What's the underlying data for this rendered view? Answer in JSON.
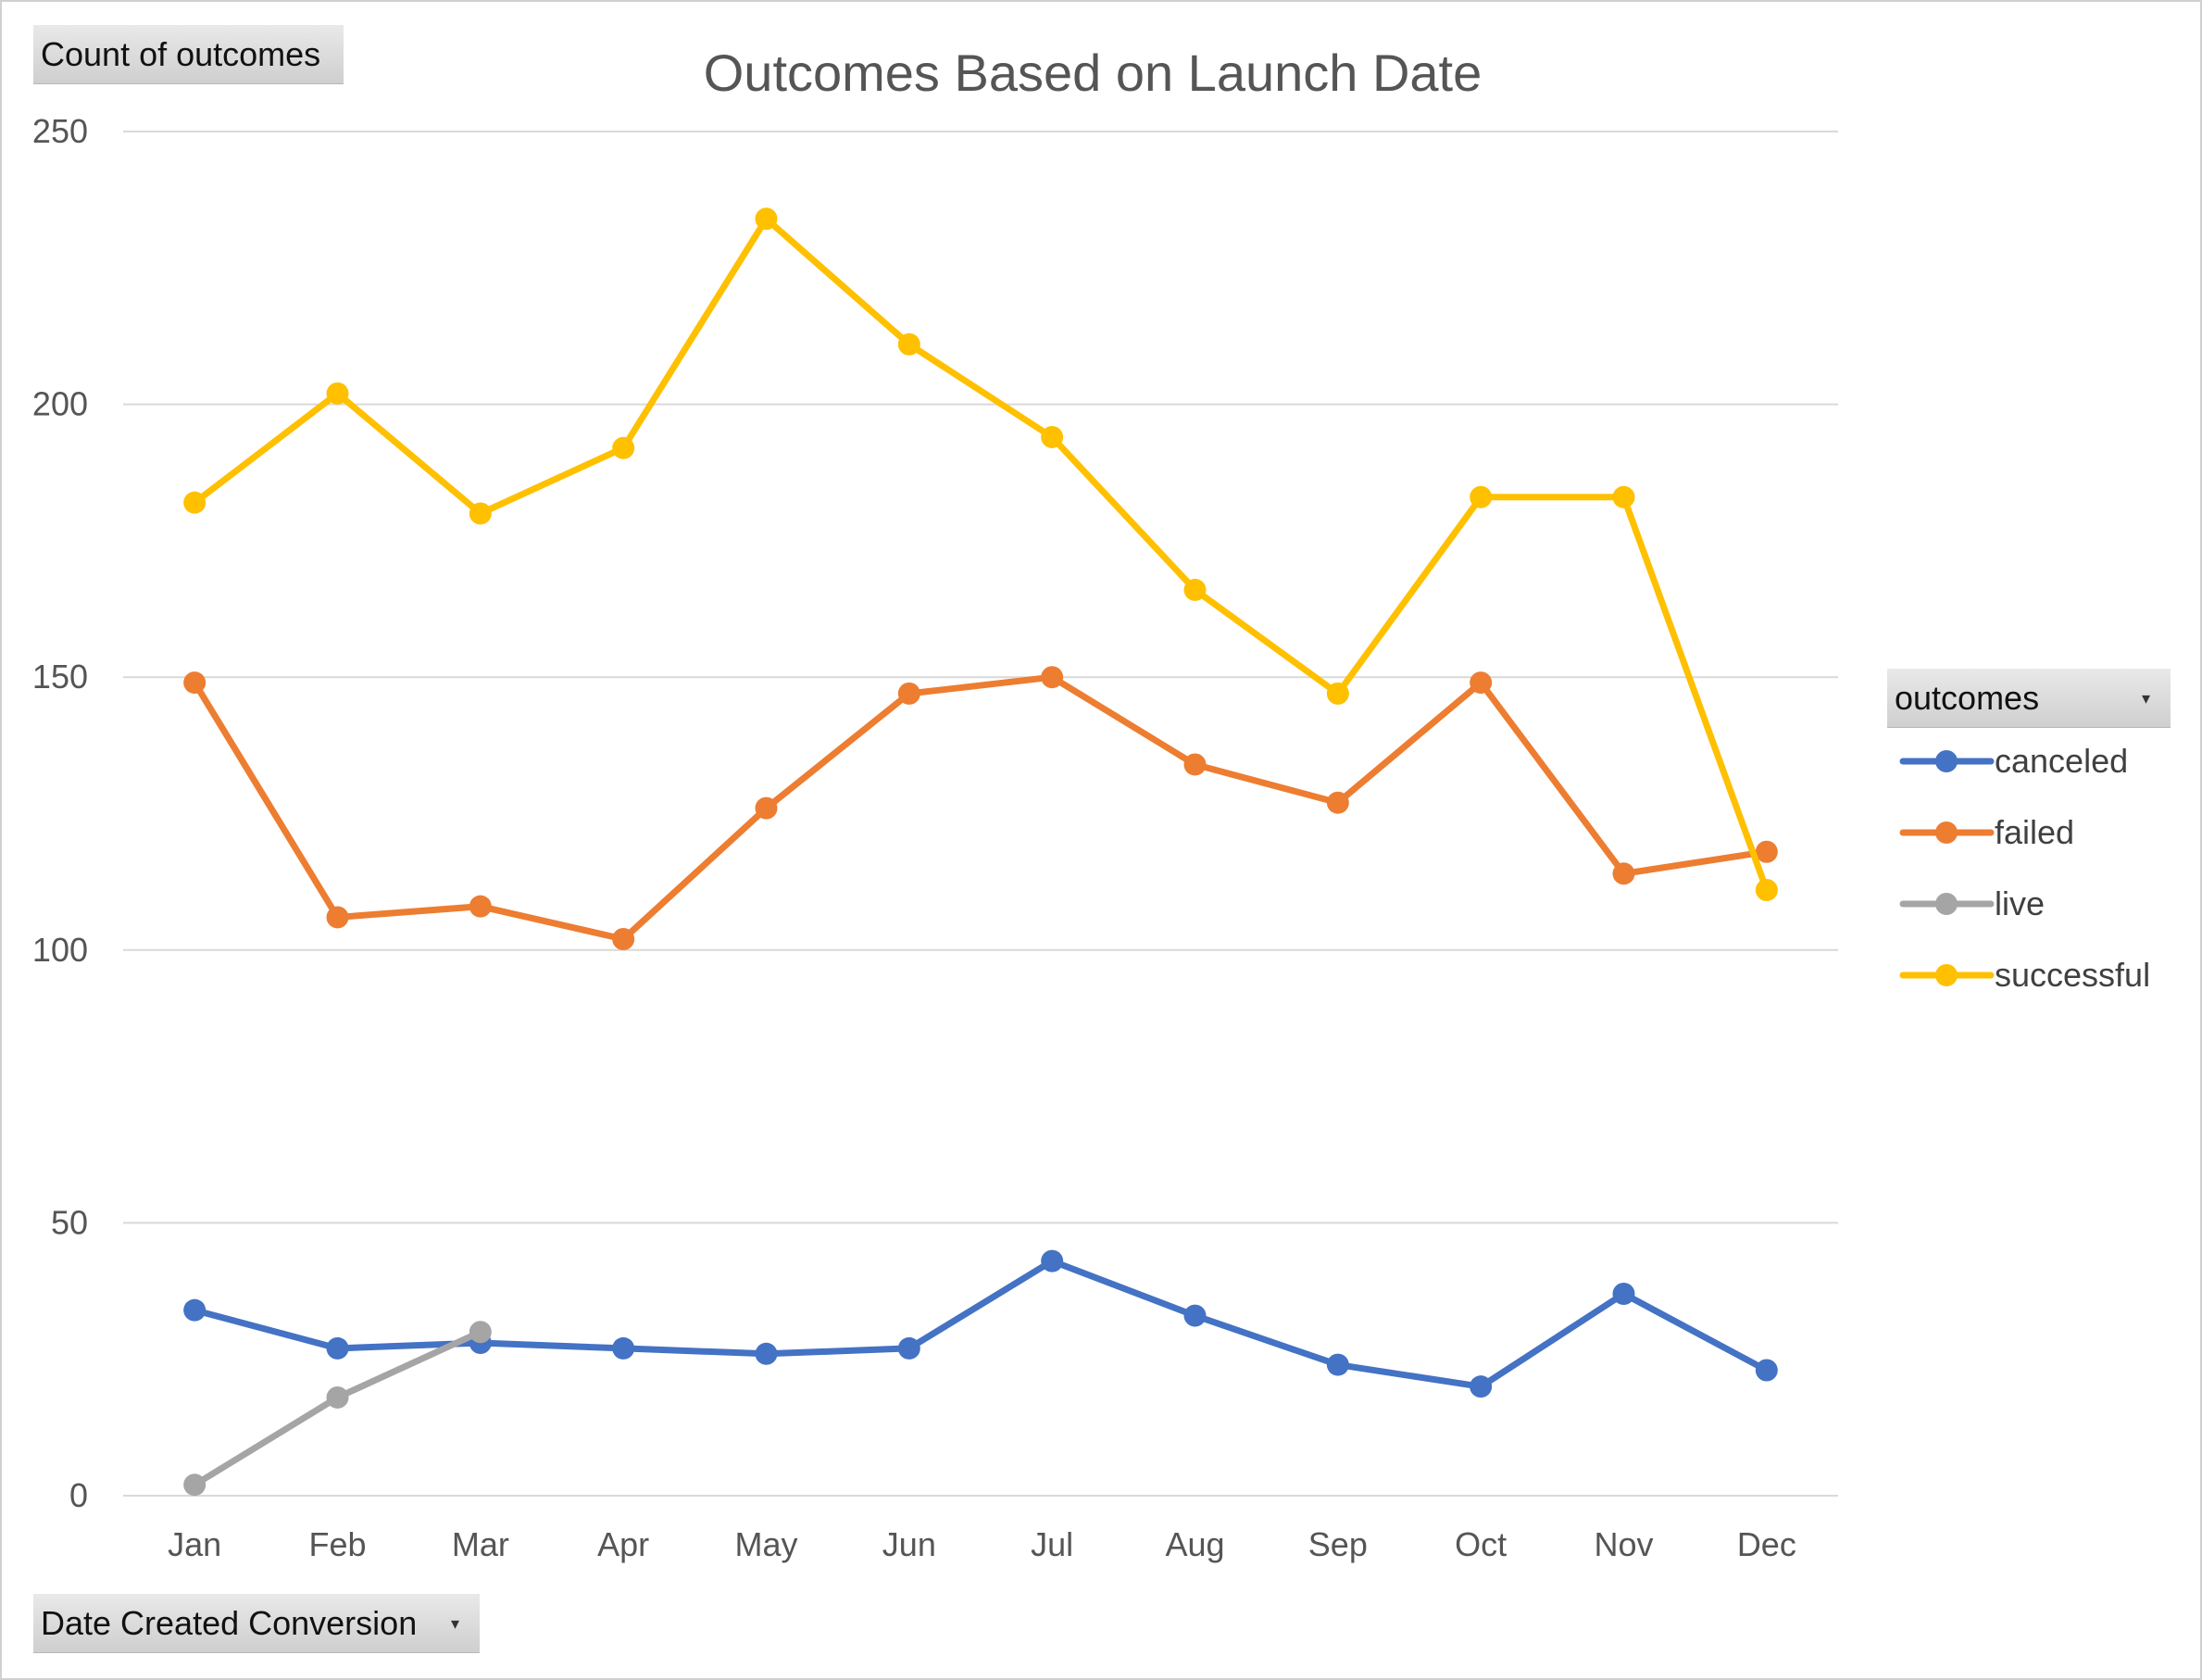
{
  "controls": {
    "values_field": "Count of outcomes",
    "axis_field": "Date Created Conversion",
    "legend_field": "outcomes",
    "dropdown_icon": "chevron-down-icon"
  },
  "chart_data": {
    "type": "line",
    "title": "Outcomes Based on Launch Date",
    "xlabel": "",
    "ylabel": "",
    "categories": [
      "Jan",
      "Feb",
      "Mar",
      "Apr",
      "May",
      "Jun",
      "Jul",
      "Aug",
      "Sep",
      "Oct",
      "Nov",
      "Dec"
    ],
    "ylim": [
      0,
      250
    ],
    "yticks": [
      0,
      50,
      100,
      150,
      200,
      250
    ],
    "grid": true,
    "legend_position": "right",
    "markers": true,
    "series": [
      {
        "name": "canceled",
        "color": "#4472C4",
        "values": [
          34,
          27,
          28,
          27,
          26,
          27,
          43,
          33,
          24,
          20,
          37,
          23
        ]
      },
      {
        "name": "failed",
        "color": "#ED7D31",
        "values": [
          149,
          106,
          108,
          102,
          126,
          147,
          150,
          134,
          127,
          149,
          114,
          118
        ]
      },
      {
        "name": "live",
        "color": "#A5A5A5",
        "values": [
          2,
          18,
          30,
          null,
          null,
          null,
          null,
          null,
          null,
          null,
          null,
          null
        ]
      },
      {
        "name": "successful",
        "color": "#FFC000",
        "values": [
          182,
          202,
          180,
          192,
          234,
          211,
          194,
          166,
          147,
          183,
          183,
          111
        ]
      }
    ]
  }
}
